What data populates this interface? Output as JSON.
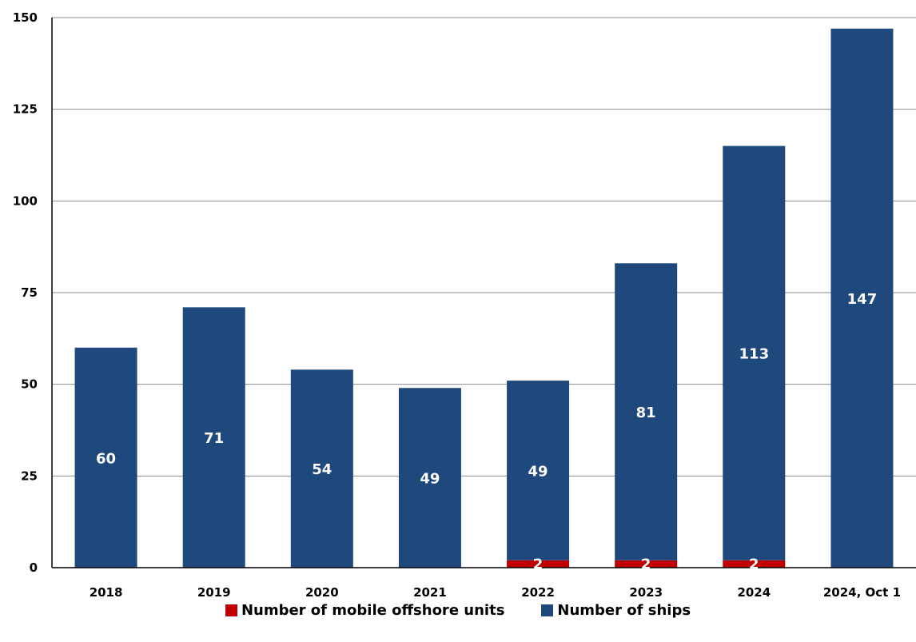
{
  "chart_data": {
    "type": "bar",
    "stacked": true,
    "categories": [
      "2018",
      "2019",
      "2020",
      "2021",
      "2022",
      "2023",
      "2024",
      "2024, Oct 1"
    ],
    "series": [
      {
        "name": "Number of mobile offshore units",
        "color": "#c00000",
        "values": [
          0,
          0,
          0,
          0,
          2,
          2,
          2,
          0
        ]
      },
      {
        "name": "Number of ships",
        "color": "#1f497d",
        "values": [
          60,
          71,
          54,
          49,
          49,
          81,
          113,
          147
        ]
      }
    ],
    "ylim": [
      0,
      150
    ],
    "yticks": [
      0,
      25,
      50,
      75,
      100,
      125,
      150
    ],
    "grid": true,
    "legend_position": "bottom",
    "title": "",
    "xlabel": "",
    "ylabel": ""
  }
}
